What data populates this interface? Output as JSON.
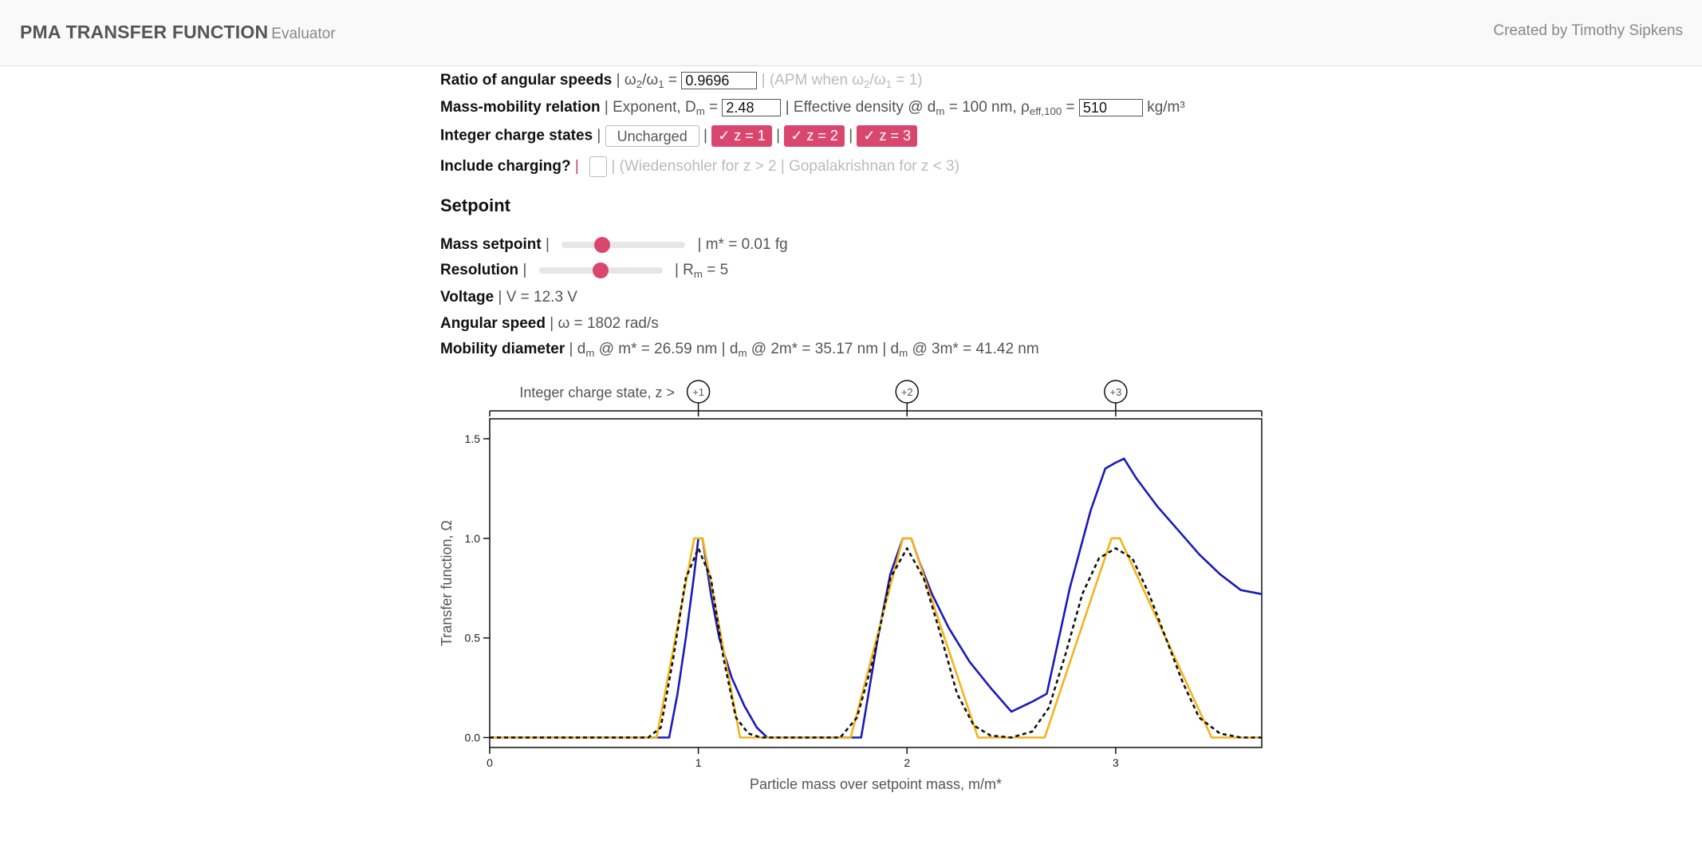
{
  "header": {
    "title": "PMA TRANSFER FUNCTION",
    "subtitle": "Evaluator",
    "credit": "Created by Timothy Sipkens"
  },
  "controls": {
    "ratio": {
      "label": "Ratio of angular speeds",
      "symbol_a": "ω",
      "symbol_b": "ω",
      "value": "0.9696",
      "hint": "(APM when ω",
      "hint_mid": "/ω",
      "hint_end": " = 1)"
    },
    "mass_mobility": {
      "label": "Mass-mobility relation",
      "exponent_label": "Exponent, D",
      "exponent_value": "2.48",
      "density_label": "Effective density @ d",
      "density_mid": " = 100 nm, ρ",
      "density_sub": "eff,100",
      "density_value": "510",
      "density_unit": "kg/m³"
    },
    "charge_states": {
      "label": "Integer charge states",
      "uncharged": "Uncharged",
      "z1": "✓ z = 1",
      "z2": "✓ z = 2",
      "z3": "✓ z = 3"
    },
    "charging": {
      "label": "Include charging?",
      "hint": "(Wiedensohler for z > 2 | Gopalakrishnan for z < 3)"
    }
  },
  "setpoint": {
    "heading": "Setpoint",
    "mass": {
      "label": "Mass setpoint",
      "readout": "m* = 0.01 fg",
      "slider_fraction": 0.33
    },
    "resolution": {
      "label": "Resolution",
      "readout": "= 5",
      "slider_fraction": 0.5
    },
    "voltage": {
      "label": "Voltage",
      "readout": "V = 12.3 V"
    },
    "speed": {
      "label": "Angular speed",
      "readout": "ω = 1802 rad/s"
    },
    "diameter": {
      "label": "Mobility diameter",
      "d1": "@ m* = 26.59 nm",
      "d2": "@ 2m* = 35.17 nm",
      "d3": "@ 3m* = 41.42 nm"
    }
  },
  "chart_data": {
    "type": "line",
    "xlabel": "Particle mass over setpoint mass, m/m*",
    "ylabel": "Transfer function, Ω",
    "top_axis_label": "Integer charge state, z >",
    "top_markers": [
      {
        "x": 1,
        "label": "+1"
      },
      {
        "x": 2,
        "label": "+2"
      },
      {
        "x": 3,
        "label": "+3"
      }
    ],
    "xlim": [
      0,
      3.7
    ],
    "ylim": [
      -0.05,
      1.6
    ],
    "xticks": [
      0,
      1,
      2,
      3
    ],
    "yticks": [
      0.0,
      0.5,
      1.0,
      1.5
    ],
    "series": [
      {
        "color": "#1a1ab8",
        "dash": false,
        "x": [
          0,
          0.86,
          0.9,
          0.94,
          0.98,
          1.0,
          1.02,
          1.06,
          1.1,
          1.16,
          1.22,
          1.28,
          1.33,
          1.6,
          1.78,
          1.82,
          1.86,
          1.92,
          1.98,
          2.0,
          2.02,
          2.06,
          2.12,
          2.2,
          2.3,
          2.4,
          2.5,
          2.6,
          2.67,
          2.78,
          2.88,
          2.95,
          3.0,
          3.04,
          3.1,
          3.2,
          3.3,
          3.4,
          3.5,
          3.6,
          3.7
        ],
        "y": [
          0,
          0,
          0.22,
          0.5,
          0.82,
          1.0,
          1.0,
          0.72,
          0.5,
          0.3,
          0.16,
          0.05,
          0.0,
          0.0,
          0.0,
          0.25,
          0.5,
          0.82,
          1.0,
          1.0,
          1.0,
          0.88,
          0.72,
          0.55,
          0.38,
          0.25,
          0.13,
          0.18,
          0.22,
          0.75,
          1.14,
          1.35,
          1.38,
          1.4,
          1.3,
          1.16,
          1.04,
          0.92,
          0.82,
          0.74,
          0.72
        ]
      },
      {
        "color": "#f5b31a",
        "dash": false,
        "x": [
          0,
          0.8,
          0.98,
          1.02,
          1.2,
          1.73,
          1.98,
          2.02,
          2.34,
          2.66,
          2.98,
          3.02,
          3.46,
          3.7
        ],
        "y": [
          0,
          0,
          1.0,
          1.0,
          0,
          0,
          1.0,
          1.0,
          0,
          0,
          1.0,
          1.0,
          0,
          0
        ]
      },
      {
        "color": "#111111",
        "dash": true,
        "x": [
          0,
          0.76,
          0.82,
          0.88,
          0.94,
          1.0,
          1.06,
          1.12,
          1.18,
          1.24,
          1.3,
          1.68,
          1.76,
          1.84,
          1.92,
          2.0,
          2.08,
          2.16,
          2.24,
          2.32,
          2.4,
          2.5,
          2.6,
          2.68,
          2.76,
          2.84,
          2.92,
          3.0,
          3.08,
          3.16,
          3.24,
          3.32,
          3.4,
          3.5,
          3.6,
          3.7
        ],
        "y": [
          0,
          0,
          0.05,
          0.4,
          0.8,
          0.95,
          0.8,
          0.4,
          0.1,
          0.02,
          0,
          0,
          0.1,
          0.4,
          0.8,
          0.95,
          0.8,
          0.52,
          0.22,
          0.06,
          0.01,
          0,
          0.03,
          0.15,
          0.42,
          0.72,
          0.9,
          0.95,
          0.9,
          0.72,
          0.5,
          0.28,
          0.1,
          0.02,
          0,
          0
        ]
      }
    ]
  }
}
